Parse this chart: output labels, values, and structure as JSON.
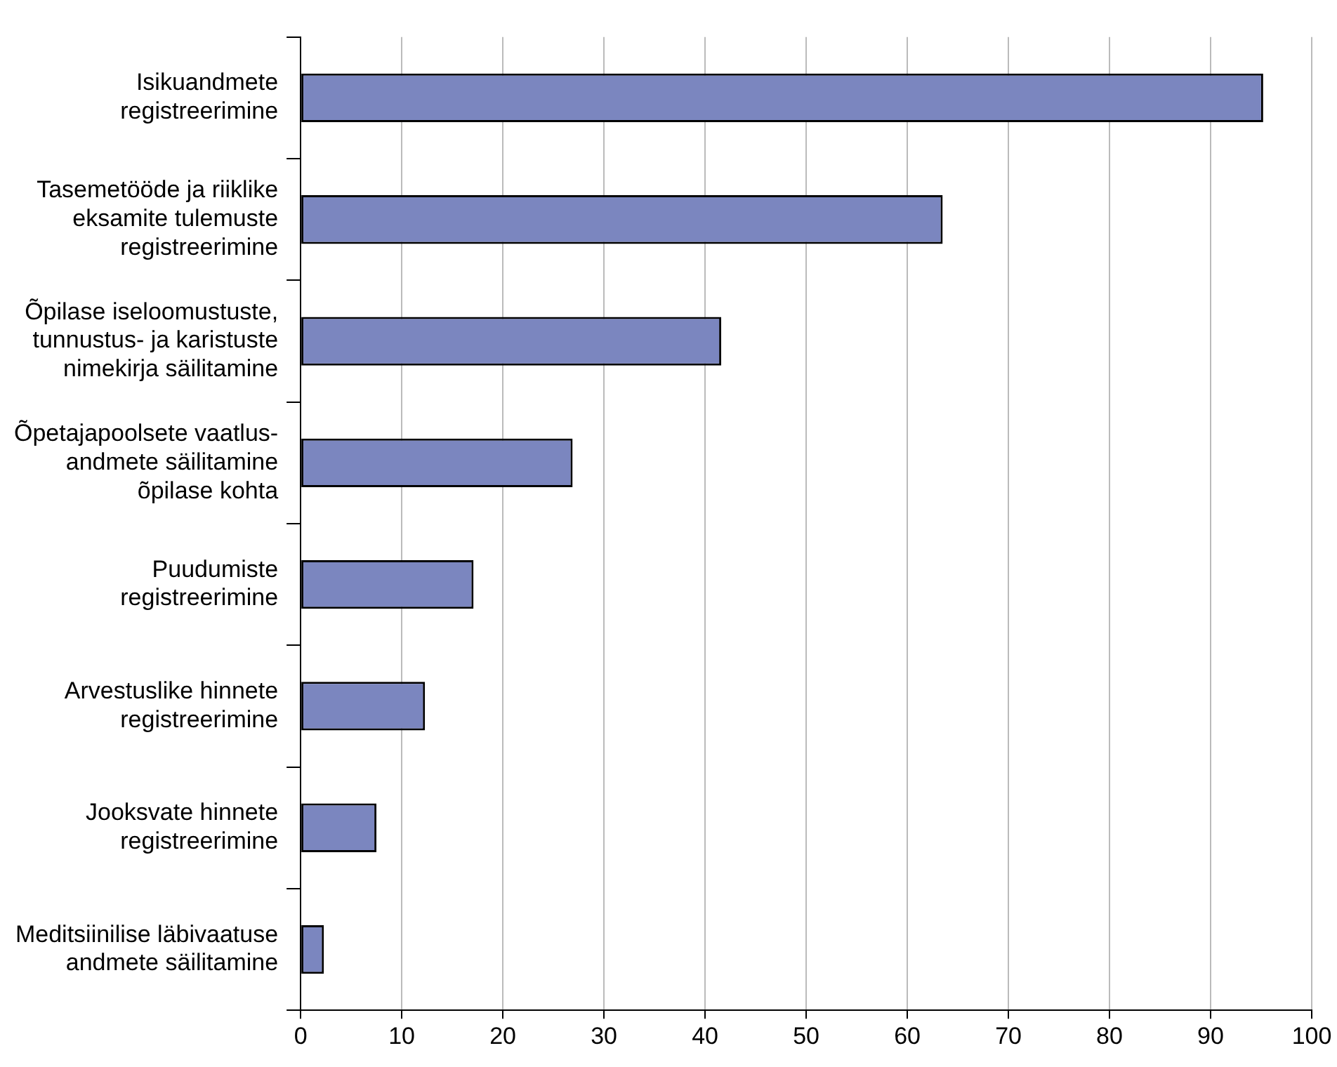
{
  "chart_data": {
    "type": "bar",
    "orientation": "horizontal",
    "categories": [
      "Isikuandmete\nregistreerimine",
      "Tasemetööde ja riiklike\neksamite tulemuste\nregistreerimine",
      "Õpilase iseloomustuste,\ntunnustus- ja karistuste\nnimekirja säilitamine",
      "Õpetajapoolsete vaatlus-\nandmete säilitamine\nõpilase kohta",
      "Puudumiste\nregistreerimine",
      "Arvestuslike hinnete\nregistreerimine",
      "Jooksvate hinnete\nregistreerimine",
      "Meditsiinilise läbivaatuse\nandmete säilitamine"
    ],
    "values": [
      95.2,
      63.5,
      41.6,
      26.9,
      17.1,
      12.3,
      7.5,
      2.3
    ],
    "color": "#7b86bf",
    "xlim": [
      0,
      100
    ],
    "xticks": [
      0,
      10,
      20,
      30,
      40,
      50,
      60,
      70,
      80,
      90,
      100
    ],
    "grid": "x",
    "legend": false
  }
}
